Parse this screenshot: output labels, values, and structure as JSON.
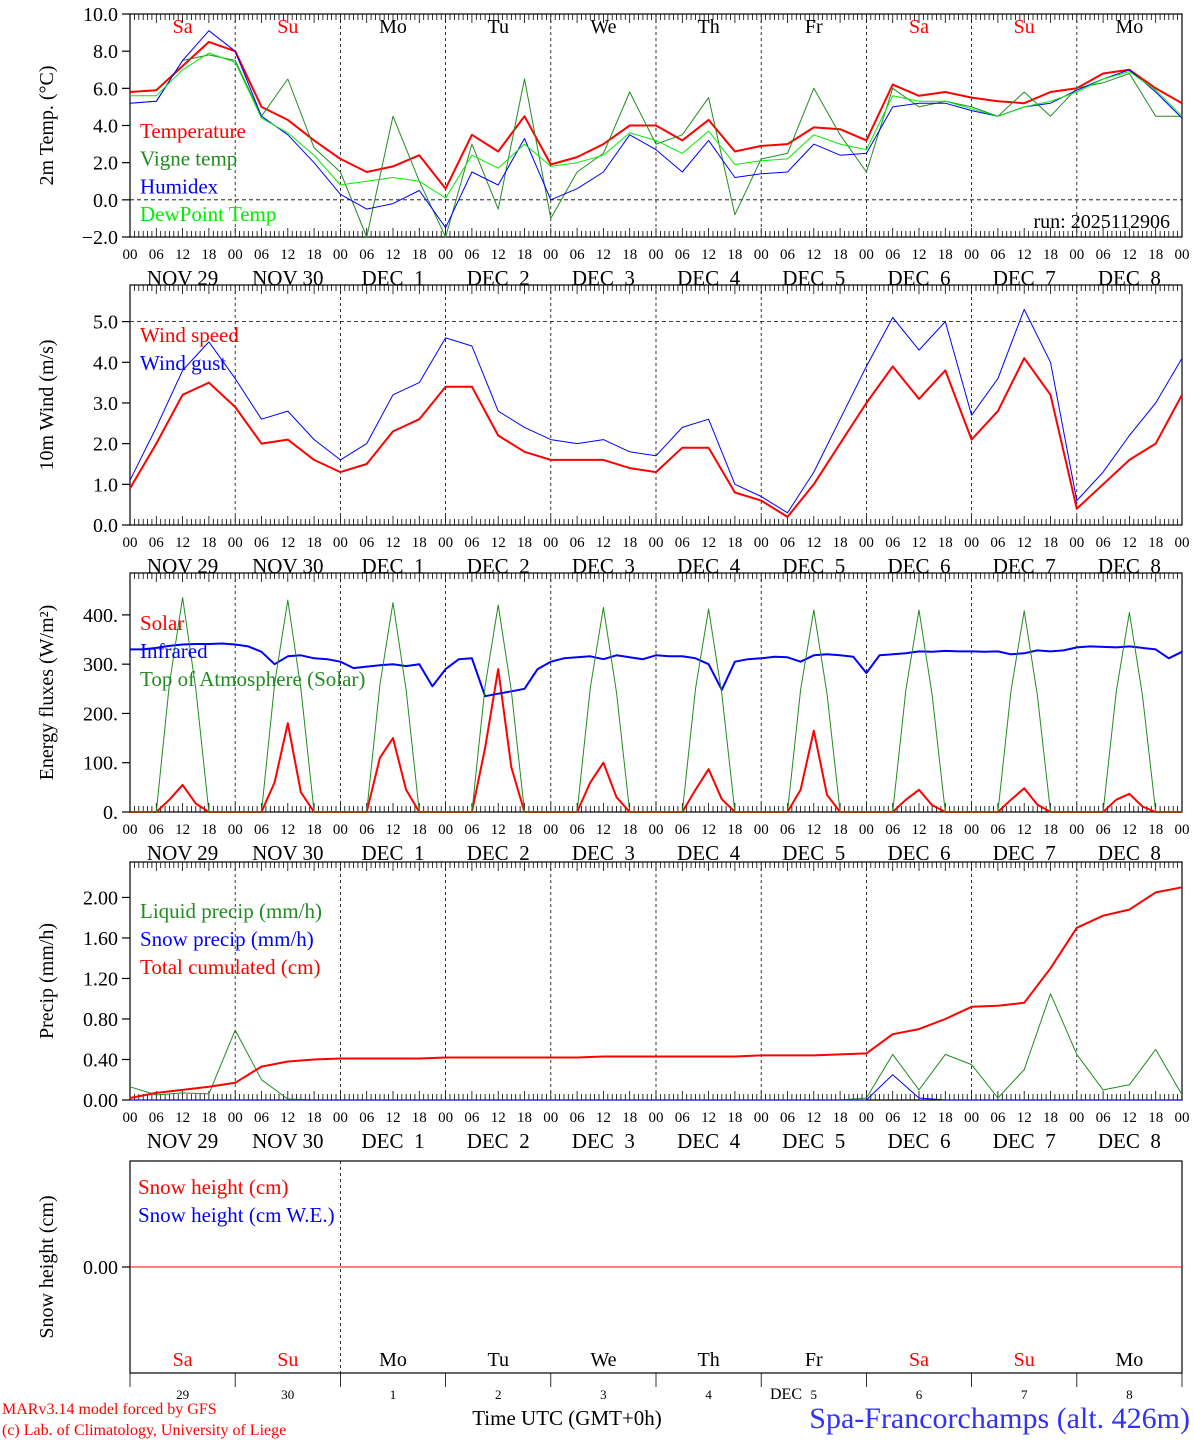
{
  "x_axis": {
    "hours_total": 240,
    "hour_labels": [
      "00",
      "06",
      "12",
      "18"
    ],
    "dates": [
      "NOV 29",
      "NOV 30",
      "DEC  1",
      "DEC  2",
      "DEC  3",
      "DEC  4",
      "DEC  5",
      "DEC  6",
      "DEC  7",
      "DEC  8"
    ],
    "days": [
      "Sa",
      "Su",
      "Mo",
      "Tu",
      "We",
      "Th",
      "Fr",
      "Sa",
      "Su",
      "Mo"
    ],
    "weekend": [
      true,
      true,
      false,
      false,
      false,
      false,
      false,
      true,
      true,
      false
    ],
    "day_numbers": [
      "29",
      "30",
      "1",
      "2",
      "3",
      "4",
      "5",
      "6",
      "7",
      "8"
    ],
    "xlabel": "Time UTC (GMT+0h)"
  },
  "colors": {
    "weekend": "#ff0000",
    "weekday": "#000000",
    "station": "#3030ff",
    "credit": "#ff0000"
  },
  "run_label": "run: 2025112906",
  "footer": {
    "credit_line1": "MARv3.14 model forced by GFS",
    "credit_line2": "(c) Lab. of Climatology, University of Liege",
    "station": "Spa-Francorchamps (alt. 426m)",
    "overlap_label": "DEC"
  },
  "chart_data": [
    {
      "type": "line",
      "ylabel": "2m Temp. (°C)",
      "ylim": [
        -2,
        10
      ],
      "yticks": [
        {
          "v": 10,
          "label": "10.0"
        },
        {
          "v": 8,
          "label": "8.0"
        },
        {
          "v": 6,
          "label": "6.0"
        },
        {
          "v": 4,
          "label": "4.0"
        },
        {
          "v": 2,
          "label": "2.0"
        },
        {
          "v": 0,
          "label": "0.0"
        },
        {
          "v": -2,
          "label": "−2.0"
        }
      ],
      "dashed_y": [
        0
      ],
      "step_hours": 6,
      "series": [
        {
          "name": "Temperature",
          "color": "#ff0000",
          "width": 2,
          "values": [
            5.8,
            5.9,
            7.2,
            8.5,
            8.0,
            5.0,
            4.3,
            3.2,
            2.2,
            1.5,
            1.8,
            2.4,
            0.6,
            3.5,
            2.6,
            4.5,
            1.9,
            2.3,
            3.0,
            4.0,
            4.0,
            3.2,
            4.3,
            2.6,
            2.9,
            3.0,
            3.9,
            3.8,
            3.2,
            6.2,
            5.6,
            5.8,
            5.5,
            5.3,
            5.2,
            5.8,
            6.0,
            6.8,
            7.0,
            6.0,
            5.2
          ]
        },
        {
          "name": "Vigne temp",
          "color": "#228b22",
          "width": 1,
          "values": [
            5.2,
            5.3,
            7.5,
            7.8,
            7.5,
            4.5,
            6.5,
            2.8,
            1.5,
            -2.0,
            4.5,
            1.0,
            -2.0,
            3.0,
            -0.5,
            6.5,
            -1.0,
            1.5,
            2.5,
            5.8,
            3.0,
            3.5,
            5.5,
            -0.8,
            2.2,
            2.5,
            6.0,
            3.5,
            1.5,
            6.0,
            5.0,
            5.3,
            5.0,
            4.5,
            5.8,
            4.5,
            6.0,
            6.3,
            6.8,
            4.5,
            4.5
          ]
        },
        {
          "name": "Humidex",
          "color": "#0000ff",
          "width": 1,
          "values": [
            5.2,
            5.3,
            7.5,
            9.1,
            8.0,
            4.5,
            3.5,
            2.0,
            0.3,
            -0.5,
            -0.2,
            0.5,
            -1.5,
            1.5,
            0.8,
            3.3,
            0.0,
            0.6,
            1.5,
            3.5,
            2.7,
            1.5,
            3.2,
            1.2,
            1.4,
            1.5,
            3.0,
            2.4,
            2.5,
            5.0,
            5.2,
            5.2,
            4.8,
            4.5,
            5.0,
            5.2,
            5.9,
            6.5,
            7.0,
            5.8,
            4.4
          ]
        },
        {
          "name": "DewPoint Temp",
          "color": "#00ee00",
          "width": 1,
          "values": [
            5.6,
            5.6,
            7.0,
            7.9,
            7.4,
            4.4,
            3.6,
            2.4,
            0.8,
            1.0,
            1.2,
            1.0,
            0.1,
            2.4,
            1.7,
            3.0,
            1.8,
            2.0,
            2.4,
            3.6,
            3.2,
            2.5,
            3.7,
            1.9,
            2.1,
            2.2,
            3.5,
            3.0,
            2.7,
            5.6,
            5.3,
            5.3,
            4.9,
            4.5,
            5.0,
            5.3,
            5.8,
            6.5,
            6.9,
            5.9,
            4.5
          ]
        }
      ]
    },
    {
      "type": "line",
      "ylabel": "10m Wind (m/s)",
      "ylim": [
        0,
        5.9
      ],
      "yticks": [
        {
          "v": 5,
          "label": "5.0"
        },
        {
          "v": 4,
          "label": "4.0"
        },
        {
          "v": 3,
          "label": "3.0"
        },
        {
          "v": 2,
          "label": "2.0"
        },
        {
          "v": 1,
          "label": "1.0"
        },
        {
          "v": 0,
          "label": "0.0"
        }
      ],
      "dashed_y": [
        5
      ],
      "step_hours": 6,
      "series": [
        {
          "name": "Wind speed",
          "color": "#ff0000",
          "width": 2,
          "values": [
            0.9,
            2.0,
            3.2,
            3.5,
            2.9,
            2.0,
            2.1,
            1.6,
            1.3,
            1.5,
            2.3,
            2.6,
            3.4,
            3.4,
            2.2,
            1.8,
            1.6,
            1.6,
            1.6,
            1.4,
            1.3,
            1.9,
            1.9,
            0.8,
            0.6,
            0.2,
            1.0,
            2.0,
            3.0,
            3.9,
            3.1,
            3.8,
            2.1,
            2.8,
            4.1,
            3.2,
            0.4,
            1.0,
            1.6,
            2.0,
            3.2
          ]
        },
        {
          "name": "Wind gust",
          "color": "#0000ff",
          "width": 1,
          "values": [
            1.1,
            2.4,
            3.8,
            4.5,
            3.6,
            2.6,
            2.8,
            2.1,
            1.6,
            2.0,
            3.2,
            3.5,
            4.6,
            4.4,
            2.8,
            2.4,
            2.1,
            2.0,
            2.1,
            1.8,
            1.7,
            2.4,
            2.6,
            1.0,
            0.7,
            0.3,
            1.3,
            2.6,
            3.9,
            5.1,
            4.3,
            5.0,
            2.7,
            3.6,
            5.3,
            4.0,
            0.6,
            1.3,
            2.2,
            3.0,
            4.1
          ]
        }
      ]
    },
    {
      "type": "line",
      "ylabel": "Energy fluxes (W/m²)",
      "ylim": [
        0,
        485
      ],
      "yticks": [
        {
          "v": 400,
          "label": "400."
        },
        {
          "v": 300,
          "label": "300."
        },
        {
          "v": 200,
          "label": "200."
        },
        {
          "v": 100,
          "label": "100."
        },
        {
          "v": 0,
          "label": "0."
        }
      ],
      "dashed_y": [],
      "step_hours": 3,
      "series": [
        {
          "name": "Solar",
          "color": "#ff0000",
          "width": 2,
          "values": [
            0,
            0,
            0,
            25,
            55,
            17,
            0,
            0,
            0,
            0,
            0,
            60,
            180,
            40,
            0,
            0,
            0,
            0,
            0,
            110,
            150,
            45,
            0,
            0,
            0,
            0,
            0,
            130,
            290,
            90,
            0,
            0,
            0,
            0,
            0,
            60,
            100,
            30,
            0,
            0,
            0,
            0,
            0,
            45,
            87,
            26,
            0,
            0,
            0,
            0,
            0,
            45,
            165,
            35,
            0,
            0,
            0,
            0,
            0,
            25,
            45,
            14,
            0,
            0,
            0,
            0,
            0,
            25,
            48,
            15,
            0,
            0,
            0,
            0,
            0,
            25,
            37,
            11,
            0,
            0,
            0
          ]
        },
        {
          "name": "Infrared",
          "color": "#0000ff",
          "width": 2,
          "values": [
            330,
            330,
            333,
            337,
            340,
            341,
            341,
            342,
            340,
            336,
            325,
            300,
            316,
            318,
            312,
            310,
            305,
            292,
            295,
            298,
            300,
            296,
            300,
            255,
            290,
            310,
            312,
            235,
            240,
            245,
            250,
            290,
            305,
            312,
            314,
            316,
            310,
            318,
            314,
            310,
            318,
            316,
            316,
            312,
            300,
            248,
            305,
            310,
            312,
            315,
            314,
            305,
            318,
            320,
            318,
            315,
            282,
            318,
            320,
            322,
            326,
            325,
            327,
            326,
            326,
            325,
            326,
            320,
            322,
            328,
            326,
            328,
            334,
            336,
            335,
            334,
            336,
            333,
            330,
            312,
            325
          ]
        },
        {
          "name": "Top of Atmosphere (Solar)",
          "color": "#228b22",
          "width": 1,
          "values": [
            0,
            0,
            0,
            260,
            435,
            250,
            0,
            0,
            0,
            0,
            0,
            260,
            430,
            250,
            0,
            0,
            0,
            0,
            0,
            258,
            425,
            248,
            0,
            0,
            0,
            0,
            0,
            255,
            420,
            245,
            0,
            0,
            0,
            0,
            0,
            252,
            415,
            243,
            0,
            0,
            0,
            0,
            0,
            250,
            412,
            240,
            0,
            0,
            0,
            0,
            0,
            248,
            410,
            240,
            0,
            0,
            0,
            0,
            0,
            248,
            410,
            238,
            0,
            0,
            0,
            0,
            0,
            246,
            408,
            238,
            0,
            0,
            0,
            0,
            0,
            245,
            405,
            236,
            0,
            0,
            0
          ]
        }
      ]
    },
    {
      "type": "line",
      "ylabel": "Precip (mm/h)",
      "ylim": [
        0,
        2.35
      ],
      "yticks": [
        {
          "v": 2,
          "label": "2.00"
        },
        {
          "v": 1.6,
          "label": "1.60"
        },
        {
          "v": 1.2,
          "label": "1.20"
        },
        {
          "v": 0.8,
          "label": "0.80"
        },
        {
          "v": 0.4,
          "label": "0.40"
        },
        {
          "v": 0,
          "label": "0.00"
        }
      ],
      "dashed_y": [],
      "step_hours": 6,
      "series": [
        {
          "name": "Liquid precip (mm/h)",
          "color": "#228b22",
          "width": 1,
          "values": [
            0.13,
            0.05,
            0.07,
            0.06,
            0.69,
            0.2,
            0.01,
            0,
            0,
            0,
            0,
            0,
            0,
            0,
            0,
            0,
            0,
            0,
            0,
            0,
            0,
            0,
            0,
            0,
            0,
            0,
            0,
            0,
            0.02,
            0.45,
            0.1,
            0.45,
            0.35,
            0.02,
            0.3,
            1.05,
            0.45,
            0.1,
            0.15,
            0.5,
            0.05
          ]
        },
        {
          "name": "Snow precip (mm/h)",
          "color": "#0000ff",
          "width": 1,
          "values": [
            0,
            0,
            0,
            0,
            0,
            0,
            0,
            0,
            0,
            0,
            0,
            0,
            0,
            0,
            0,
            0,
            0,
            0,
            0,
            0,
            0,
            0,
            0,
            0,
            0,
            0,
            0,
            0,
            0,
            0.25,
            0.02,
            0,
            0,
            0,
            0,
            0,
            0,
            0,
            0,
            0,
            0
          ]
        },
        {
          "name": "Total cumulated (cm)",
          "color": "#ff0000",
          "width": 2,
          "values": [
            0.02,
            0.07,
            0.1,
            0.13,
            0.17,
            0.33,
            0.38,
            0.4,
            0.41,
            0.41,
            0.41,
            0.41,
            0.42,
            0.42,
            0.42,
            0.42,
            0.42,
            0.42,
            0.43,
            0.43,
            0.43,
            0.43,
            0.43,
            0.43,
            0.44,
            0.44,
            0.44,
            0.45,
            0.46,
            0.65,
            0.7,
            0.8,
            0.92,
            0.93,
            0.96,
            1.3,
            1.7,
            1.82,
            1.88,
            2.05,
            2.1
          ]
        }
      ]
    },
    {
      "type": "line",
      "ylabel": "Snow height (cm)",
      "ylim": [
        -1,
        1
      ],
      "yticks": [
        {
          "v": 0,
          "label": "0.00"
        }
      ],
      "dashed_y": [],
      "step_hours": 24,
      "series": [
        {
          "name": "Snow height (cm)",
          "color": "#ff0000",
          "width": 1,
          "values": [
            0,
            0,
            0,
            0,
            0,
            0,
            0,
            0,
            0,
            0,
            0
          ]
        },
        {
          "name": "Snow height (cm W.E.)",
          "color": "#0000ff",
          "width": 1,
          "values": null
        }
      ]
    }
  ]
}
